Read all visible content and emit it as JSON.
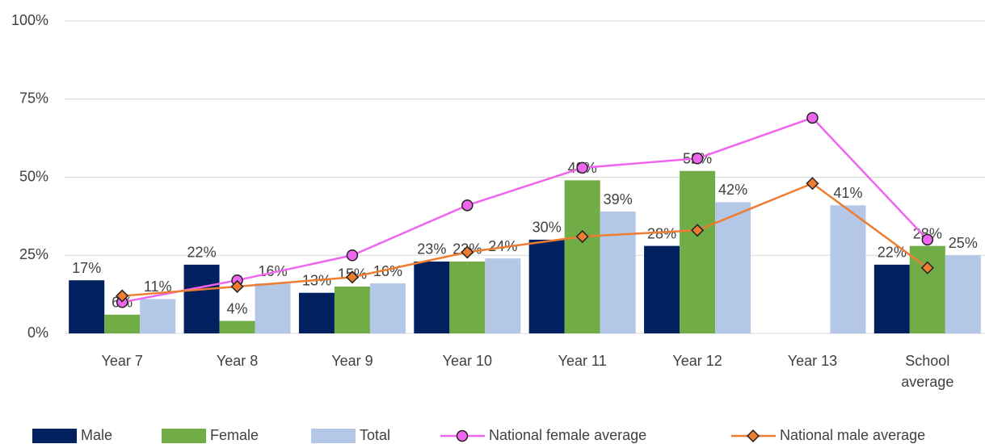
{
  "chart_data": {
    "type": "bar_line",
    "categories": [
      "Year 7",
      "Year 8",
      "Year 9",
      "Year 10",
      "Year 11",
      "Year 12",
      "Year 13",
      "School average"
    ],
    "series": [
      {
        "name": "Male",
        "type": "bar",
        "color": "#002060",
        "values": [
          17,
          22,
          13,
          23,
          30,
          28,
          null,
          22
        ],
        "value_labels": [
          "17%",
          "22%",
          "13%",
          "23%",
          "30%",
          "28%",
          null,
          "22%"
        ]
      },
      {
        "name": "Female",
        "type": "bar",
        "color": "#70ad47",
        "values": [
          6,
          4,
          15,
          23,
          49,
          52,
          null,
          28
        ],
        "value_labels": [
          "6%",
          "4%",
          "15%",
          "23%",
          "49%",
          "52%",
          null,
          "28%"
        ]
      },
      {
        "name": "Total",
        "type": "bar",
        "color": "#b4c7e7",
        "values": [
          11,
          16,
          16,
          24,
          39,
          42,
          41,
          25
        ],
        "value_labels": [
          "11%",
          "16%",
          "16%",
          "24%",
          "39%",
          "42%",
          "41%",
          "25%"
        ]
      },
      {
        "name": "National female average",
        "type": "line",
        "color": "#ee66ee",
        "marker": "circle",
        "values": [
          10,
          17,
          25,
          41,
          53,
          56,
          69,
          30
        ]
      },
      {
        "name": "National male average",
        "type": "line",
        "color": "#ed7d31",
        "marker": "diamond",
        "values": [
          12,
          15,
          18,
          26,
          31,
          33,
          48,
          21
        ]
      }
    ],
    "ylim": [
      0,
      100
    ],
    "yticks": [
      {
        "value": 0,
        "label": "0%"
      },
      {
        "value": 25,
        "label": "25%"
      },
      {
        "value": 50,
        "label": "50%"
      },
      {
        "value": 75,
        "label": "75%"
      },
      {
        "value": 100,
        "label": "100%"
      }
    ],
    "grid": true,
    "legend": "bottom"
  }
}
